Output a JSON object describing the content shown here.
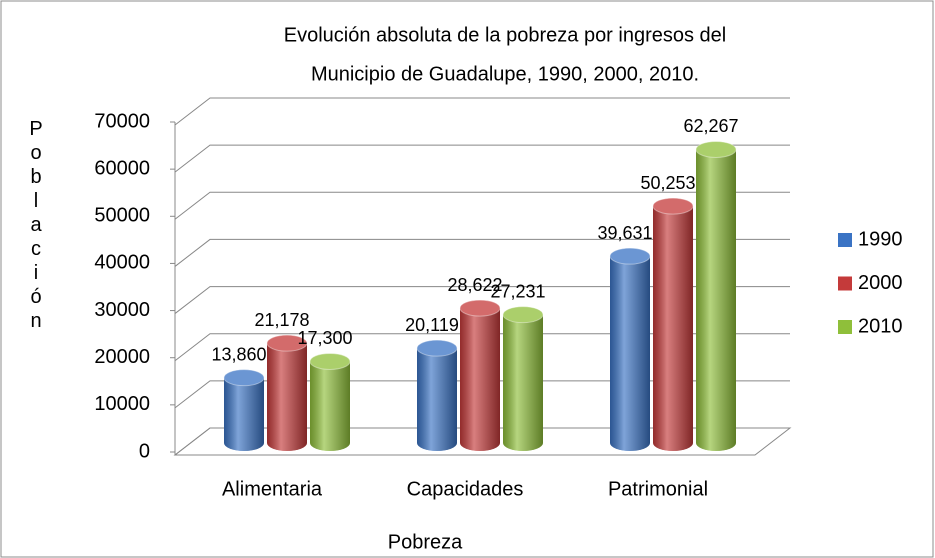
{
  "chart_data": {
    "type": "bar",
    "title": [
      "Evolución absoluta de la pobreza por ingresos del",
      "Municipio de Guadalupe, 1990, 2000,  2010."
    ],
    "x_label": "Pobreza",
    "y_label": "Población",
    "categories": [
      "Alimentaria",
      "Capacidades",
      "Patrimonial"
    ],
    "series": [
      {
        "name": "1990",
        "color": "#3a73c4",
        "values": [
          13860,
          20119,
          39631
        ],
        "value_labels": [
          "13,860",
          "20,119",
          "39,631"
        ]
      },
      {
        "name": "2000",
        "color": "#c43a3a",
        "values": [
          21178,
          28622,
          50253
        ],
        "value_labels": [
          "21,178",
          "28,622",
          "50,253"
        ]
      },
      {
        "name": "2010",
        "color": "#8fbf3a",
        "values": [
          17300,
          27231,
          62267
        ],
        "value_labels": [
          "17,300",
          "27,231",
          "62,267"
        ]
      }
    ],
    "ylim": [
      0,
      70000
    ],
    "yticks": [
      0,
      10000,
      20000,
      30000,
      40000,
      50000,
      60000,
      70000
    ],
    "grid": true,
    "legend": "right"
  }
}
